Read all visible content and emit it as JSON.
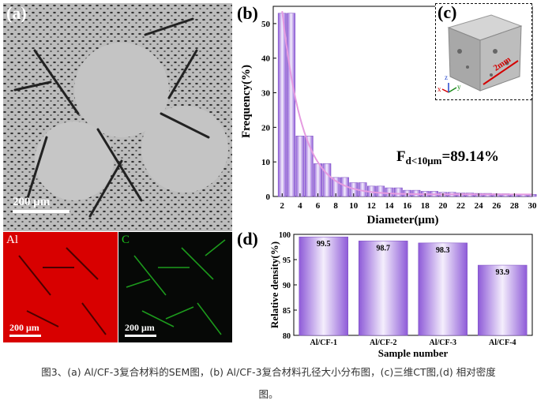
{
  "panels": {
    "a": {
      "label": "(a)",
      "scale_bar": "200 μm"
    },
    "al_map": {
      "element": "Al",
      "scale_bar": "200 μm",
      "color": "#d80000"
    },
    "c_map": {
      "element": "C",
      "scale_bar": "200 μm",
      "color": "#1c9a1c"
    },
    "b": {
      "label": "(b)"
    },
    "c": {
      "label": "(c)",
      "scale_text": "2mm",
      "axes": {
        "x": "x",
        "y": "y",
        "z": "z"
      }
    },
    "d": {
      "label": "(d)"
    }
  },
  "chart_data": [
    {
      "id": "b",
      "type": "bar",
      "xlabel": "Diameter(μm)",
      "ylabel": "Frequency(%)",
      "annotation": "F<sub>d<10μm</sub>=89.14%",
      "annotation_main": "F",
      "annotation_sub": "d<10μm",
      "annotation_value": "=89.14%",
      "x_ticks": [
        "2",
        "4",
        "6",
        "8",
        "10",
        "12",
        "14",
        "16",
        "18",
        "20",
        "22",
        "24",
        "26",
        "28",
        "30"
      ],
      "y_ticks": [
        "0",
        "10",
        "20",
        "30",
        "40",
        "50"
      ],
      "ylim": [
        0,
        55
      ],
      "xlim": [
        1,
        30
      ],
      "x": [
        2,
        3,
        4,
        5,
        6,
        7,
        8,
        9,
        10,
        11,
        12,
        13,
        14,
        15,
        16,
        17,
        18,
        19,
        20,
        21,
        22,
        23,
        24,
        25,
        26,
        27,
        28,
        29,
        30
      ],
      "values": [
        53,
        53,
        17.5,
        17.5,
        9.5,
        9.5,
        5.5,
        5.5,
        4,
        4,
        3,
        3,
        2.5,
        2.5,
        1.8,
        1.8,
        1.5,
        1.5,
        1.2,
        1.2,
        1,
        1,
        0.9,
        0.9,
        0.8,
        0.8,
        0.7,
        0.7,
        0.6
      ],
      "fit_curve": "exponential decay",
      "bar_color": "#9b6bdc",
      "curve_color": "#e59be0"
    },
    {
      "id": "d",
      "type": "bar",
      "xlabel": "Sample number",
      "ylabel": "Relative density(%)",
      "categories": [
        "Al/CF-1",
        "Al/CF-2",
        "Al/CF-3",
        "Al/CF-4"
      ],
      "values": [
        99.5,
        98.7,
        98.3,
        93.9
      ],
      "value_labels": [
        "99.5",
        "98.7",
        "98.3",
        "93.9"
      ],
      "y_ticks": [
        "80",
        "85",
        "90",
        "95",
        "100"
      ],
      "ylim": [
        80,
        100
      ],
      "bar_color": "#9b6bdc"
    }
  ],
  "caption": {
    "line1": "图3、(a) Al/CF-3复合材料的SEM图，(b) Al/CF-3复合材料孔径大小分布图，(c)三维CT图,(d) 相对密度",
    "line2": "图。"
  }
}
